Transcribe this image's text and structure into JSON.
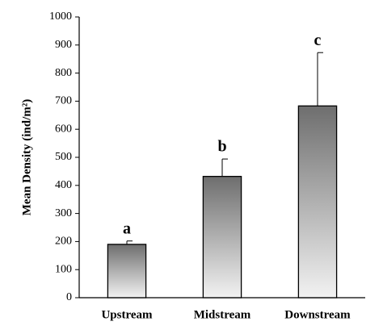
{
  "chart_data": {
    "type": "bar",
    "y_label": "Mean Density (ind/m²)",
    "categories": [
      "Upstream",
      "Midstream",
      "Downstream"
    ],
    "values": [
      190,
      432,
      683
    ],
    "errors": [
      12,
      62,
      190
    ],
    "significance_letters": [
      "a",
      "b",
      "c"
    ],
    "ylim": [
      0,
      1000
    ],
    "yticks": [
      0,
      100,
      200,
      300,
      400,
      500,
      600,
      700,
      800,
      900,
      1000
    ],
    "grid": false
  }
}
